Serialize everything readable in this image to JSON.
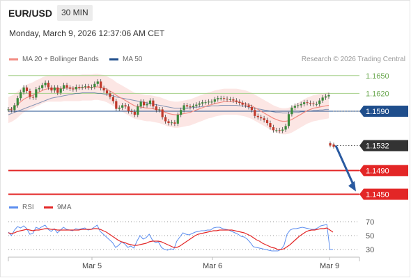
{
  "header": {
    "pair": "EUR/USD",
    "timeframe": "30 MIN",
    "datetime": "Monday, March 9, 2026 12:37:06 AM CET",
    "credit": "Research © 2026 Trading Central"
  },
  "colors": {
    "bollinger": "#f28b82",
    "ma50": "#1f4e8c",
    "resistance": "#a6d08a",
    "support": "#e32626",
    "current": "#333333",
    "arrow": "#2a5aa0",
    "rsi": "#5b8def",
    "rsi_ma": "#e32626"
  },
  "chart_data": [
    {
      "type": "line",
      "legend": [
        "MA 20 + Bollinger Bands",
        "MA 50"
      ],
      "x": [
        "Mar 5",
        "Mar 6",
        "Mar 9"
      ],
      "levels": [
        {
          "value": 1.165,
          "label": "1.1650",
          "kind": "resistance"
        },
        {
          "value": 1.162,
          "label": "1.1620",
          "kind": "resistance"
        },
        {
          "value": 1.159,
          "label": "1.1590",
          "kind": "pivot"
        },
        {
          "value": 1.1532,
          "label": "1.1532",
          "kind": "current"
        },
        {
          "value": 1.149,
          "label": "1.1490",
          "kind": "support"
        },
        {
          "value": 1.145,
          "label": "1.1450",
          "kind": "support"
        }
      ],
      "price": [
        1.1593,
        1.1592,
        1.16,
        1.1612,
        1.1622,
        1.163,
        1.1624,
        1.1614,
        1.1613,
        1.1627,
        1.1629,
        1.1634,
        1.1638,
        1.163,
        1.1625,
        1.163,
        1.1621,
        1.1628,
        1.1634,
        1.163,
        1.1628,
        1.1627,
        1.1631,
        1.163,
        1.1631,
        1.1632,
        1.163,
        1.1631,
        1.1636,
        1.164,
        1.1629,
        1.1625,
        1.162,
        1.1614,
        1.1607,
        1.1594,
        1.1596,
        1.16,
        1.1598,
        1.159,
        1.1589,
        1.1584,
        1.1598,
        1.1606,
        1.16,
        1.1602,
        1.1608,
        1.1598,
        1.1592,
        1.1593,
        1.158,
        1.1573,
        1.157,
        1.1571,
        1.1569,
        1.1584,
        1.1592,
        1.16,
        1.1598,
        1.1597,
        1.1599,
        1.1601,
        1.1603,
        1.1605,
        1.1605,
        1.1606,
        1.1606,
        1.161,
        1.1612,
        1.1612,
        1.1611,
        1.161,
        1.161,
        1.1608,
        1.1606,
        1.1604,
        1.1601,
        1.16,
        1.1597,
        1.1592,
        1.1582,
        1.158,
        1.1578,
        1.1575,
        1.157,
        1.1563,
        1.1558,
        1.1558,
        1.1557,
        1.1559,
        1.1565,
        1.1585,
        1.1596,
        1.1599,
        1.16,
        1.1602,
        1.1605,
        1.1604,
        1.1603,
        1.1602,
        1.1602,
        1.1608,
        1.1613,
        1.1615,
        1.1617
      ],
      "price_tail": [
        1.1534,
        1.1532
      ],
      "ma20": [
        1.1592,
        1.1594,
        1.1597,
        1.1601,
        1.1606,
        1.161,
        1.1613,
        1.1615,
        1.1617,
        1.162,
        1.1622,
        1.1625,
        1.1627,
        1.1628,
        1.1628,
        1.1628,
        1.1628,
        1.1628,
        1.1629,
        1.1629,
        1.1629,
        1.1629,
        1.1629,
        1.1629,
        1.163,
        1.163,
        1.163,
        1.163,
        1.1631,
        1.1631,
        1.163,
        1.1629,
        1.1627,
        1.1624,
        1.1621,
        1.1617,
        1.1614,
        1.1611,
        1.1608,
        1.1605,
        1.1602,
        1.1599,
        1.1598,
        1.1597,
        1.1596,
        1.1595,
        1.1595,
        1.1594,
        1.1593,
        1.1592,
        1.159,
        1.1588,
        1.1586,
        1.1585,
        1.1584,
        1.1584,
        1.1585,
        1.1586,
        1.1587,
        1.1588,
        1.159,
        1.1592,
        1.1594,
        1.1596,
        1.1598,
        1.16,
        1.1601,
        1.1603,
        1.1604,
        1.1605,
        1.1606,
        1.1606,
        1.1606,
        1.1606,
        1.1606,
        1.1605,
        1.1604,
        1.1603,
        1.1601,
        1.1599,
        1.1596,
        1.1593,
        1.159,
        1.1587,
        1.1584,
        1.1581,
        1.1578,
        1.1576,
        1.1574,
        1.1573,
        1.1573,
        1.1574,
        1.1576,
        1.1579,
        1.1582,
        1.1585,
        1.1588,
        1.1591,
        1.1593,
        1.1595,
        1.1596,
        1.1597,
        1.1598,
        1.1599,
        1.16
      ],
      "ma50": [
        1.1584,
        1.1586,
        1.1588,
        1.159,
        1.1592,
        1.1594,
        1.1596,
        1.1598,
        1.16,
        1.1602,
        1.1604,
        1.1606,
        1.1608,
        1.161,
        1.1612,
        1.1613,
        1.1614,
        1.1615,
        1.1616,
        1.1617,
        1.1618,
        1.1619,
        1.162,
        1.162,
        1.1621,
        1.1621,
        1.1621,
        1.1621,
        1.1621,
        1.162,
        1.162,
        1.1619,
        1.1618,
        1.1617,
        1.1616,
        1.1614,
        1.1613,
        1.1612,
        1.1611,
        1.161,
        1.1609,
        1.1608,
        1.1607,
        1.1606,
        1.1605,
        1.1604,
        1.1603,
        1.1602,
        1.1601,
        1.16,
        1.1599,
        1.1598,
        1.1597,
        1.1596,
        1.1595,
        1.1595,
        1.1595,
        1.1595,
        1.1595,
        1.1596,
        1.1596,
        1.1597,
        1.1597,
        1.1598,
        1.1598,
        1.1598,
        1.1599,
        1.1599,
        1.1599,
        1.16,
        1.16,
        1.16,
        1.16,
        1.16,
        1.16,
        1.1599,
        1.1599,
        1.1598,
        1.1597,
        1.1596,
        1.1595,
        1.1594,
        1.1593,
        1.1592,
        1.1591,
        1.159,
        1.1589,
        1.1588,
        1.1588,
        1.1587,
        1.1587,
        1.1587,
        1.1587,
        1.1588,
        1.1588,
        1.1589,
        1.1589,
        1.159,
        1.159,
        1.1591,
        1.1591,
        1.1592,
        1.1592,
        1.1593,
        1.1593
      ],
      "band_width": 0.0022,
      "forecast_target": 1.145,
      "ylim": [
        1.144,
        1.1665
      ]
    },
    {
      "type": "line",
      "legend": [
        "RSI",
        "9MA"
      ],
      "y_ticks": [
        70,
        50,
        30
      ],
      "ylim": [
        25,
        75
      ],
      "rsi": [
        55,
        50,
        58,
        63,
        61,
        64,
        60,
        52,
        53,
        62,
        60,
        63,
        65,
        59,
        56,
        60,
        54,
        58,
        62,
        59,
        58,
        57,
        60,
        59,
        60,
        61,
        58,
        59,
        62,
        65,
        56,
        52,
        48,
        44,
        40,
        33,
        36,
        41,
        38,
        33,
        35,
        32,
        42,
        50,
        45,
        47,
        52,
        44,
        40,
        41,
        33,
        30,
        29,
        31,
        30,
        42,
        48,
        54,
        52,
        51,
        53,
        55,
        56,
        57,
        57,
        58,
        58,
        61,
        62,
        62,
        60,
        59,
        58,
        56,
        54,
        52,
        49,
        48,
        45,
        40,
        34,
        33,
        32,
        31,
        30,
        29,
        28,
        28,
        28,
        30,
        36,
        52,
        58,
        60,
        60,
        61,
        62,
        61,
        60,
        59,
        59,
        61,
        64,
        65,
        66,
        30,
        30
      ],
      "rsi_ma": [
        54,
        53,
        54,
        56,
        57,
        58,
        59,
        58,
        57,
        58,
        58,
        59,
        60,
        60,
        59,
        59,
        58,
        58,
        58,
        58,
        58,
        58,
        58,
        58,
        59,
        59,
        59,
        59,
        60,
        60,
        59,
        57,
        55,
        52,
        49,
        46,
        43,
        41,
        40,
        38,
        37,
        36,
        36,
        37,
        38,
        39,
        41,
        42,
        42,
        42,
        41,
        39,
        37,
        35,
        33,
        33,
        35,
        38,
        41,
        44,
        47,
        50,
        52,
        53,
        54,
        55,
        56,
        57,
        57,
        58,
        58,
        58,
        58,
        58,
        57,
        56,
        55,
        54,
        52,
        50,
        47,
        44,
        42,
        39,
        37,
        35,
        33,
        32,
        30,
        30,
        31,
        34,
        37,
        41,
        45,
        49,
        52,
        55,
        57,
        58,
        58,
        59,
        60,
        60,
        61,
        58,
        55
      ]
    }
  ],
  "xaxis": {
    "labels": [
      "Mar 5",
      "Mar 6",
      "Mar 9"
    ]
  }
}
